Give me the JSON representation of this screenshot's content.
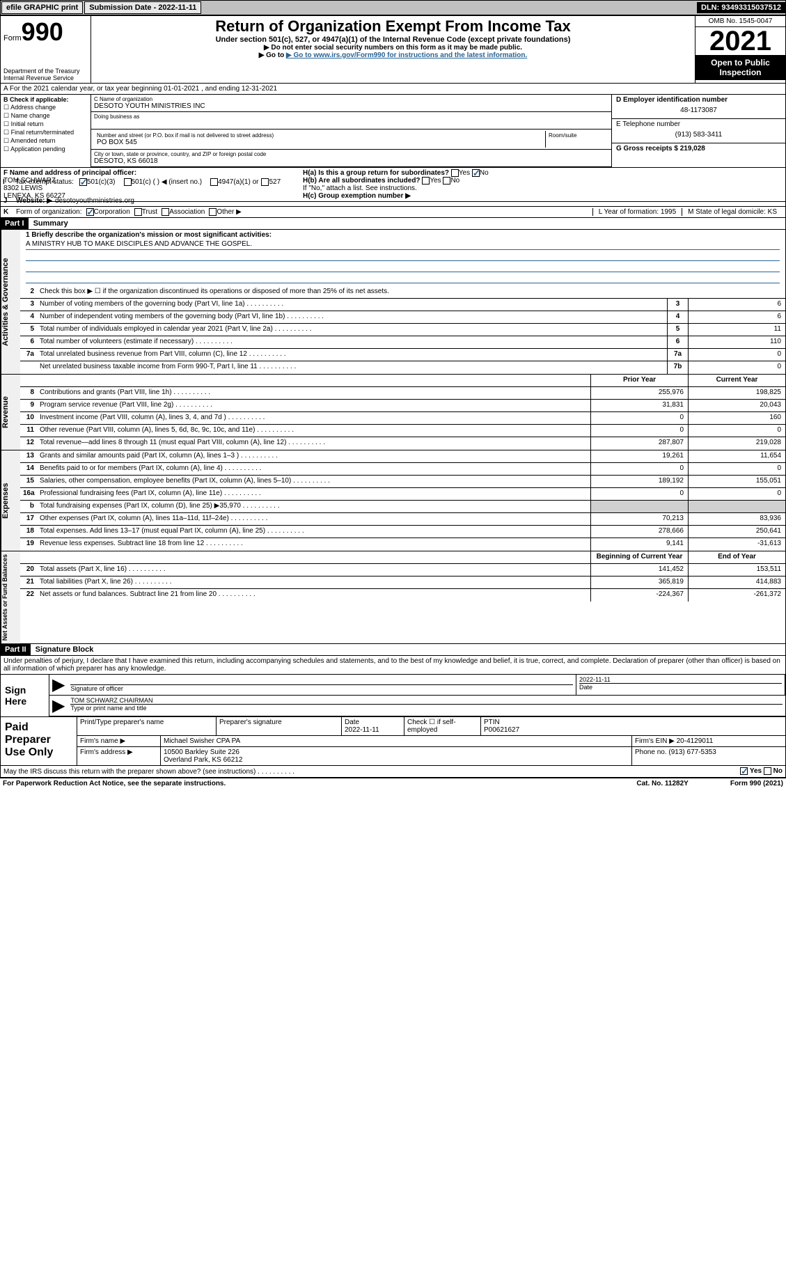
{
  "top": {
    "efile": "efile GRAPHIC print",
    "sub_label": "Submission Date - 2022-11-11",
    "dln": "DLN: 93493315037512"
  },
  "hdr": {
    "form": "Form",
    "num": "990",
    "dept": "Department of the Treasury\nInternal Revenue Service",
    "title": "Return of Organization Exempt From Income Tax",
    "sub": "Under section 501(c), 527, or 4947(a)(1) of the Internal Revenue Code (except private foundations)",
    "ssn": "▶ Do not enter social security numbers on this form as it may be made public.",
    "goto": "▶ Go to www.irs.gov/Form990 for instructions and the latest information.",
    "omb": "OMB No. 1545-0047",
    "year": "2021",
    "open": "Open to Public Inspection"
  },
  "a": "A For the 2021 calendar year, or tax year beginning 01-01-2021   , and ending 12-31-2021",
  "b": {
    "hdr": "B Check if applicable:",
    "items": [
      "Address change",
      "Name change",
      "Initial return",
      "Final return/terminated",
      "Amended return",
      "Application pending"
    ]
  },
  "c": {
    "name_lbl": "C Name of organization",
    "name": "DESOTO YOUTH MINISTRIES INC",
    "dba_lbl": "Doing business as",
    "addr_lbl": "Number and street (or P.O. box if mail is not delivered to street address)",
    "room_lbl": "Room/suite",
    "addr": "PO BOX 545",
    "city_lbl": "City or town, state or province, country, and ZIP or foreign postal code",
    "city": "DESOTO, KS  66018"
  },
  "d": {
    "lbl": "D Employer identification number",
    "val": "48-1173087"
  },
  "e": {
    "lbl": "E Telephone number",
    "val": "(913) 583-3411"
  },
  "g": {
    "lbl": "G Gross receipts $ 219,028"
  },
  "f": {
    "lbl": "F  Name and address of principal officer:",
    "name": "TOM SCHWARZ",
    "addr1": "8302 LEWIS",
    "addr2": "LENEXA, KS  66227"
  },
  "h": {
    "a": "H(a)  Is this a group return for subordinates?",
    "b": "H(b)  Are all subordinates included?",
    "bnote": "If \"No,\" attach a list. See instructions.",
    "c": "H(c)  Group exemption number ▶",
    "yes": "Yes",
    "no": "No"
  },
  "i": {
    "lbl": "I   Tax-exempt status:",
    "opts": [
      "501(c)(3)",
      "501(c) (  ) ◀ (insert no.)",
      "4947(a)(1) or",
      "527"
    ]
  },
  "j": {
    "lbl": "J   Website: ▶",
    "val": "desotoyouthministries.org"
  },
  "k": {
    "lbl": "K Form of organization:",
    "opts": [
      "Corporation",
      "Trust",
      "Association",
      "Other ▶"
    ]
  },
  "l": "L Year of formation: 1995",
  "m": "M State of legal domicile: KS",
  "part1": {
    "hdr": "Part I",
    "title": "Summary"
  },
  "mission": {
    "lbl": "1   Briefly describe the organization's mission or most significant activities:",
    "txt": "A MINISTRY HUB TO MAKE DISCIPLES AND ADVANCE THE GOSPEL."
  },
  "gov": {
    "tab": "Activities & Governance",
    "l2": "Check this box ▶ ☐  if the organization discontinued its operations or disposed of more than 25% of its net assets.",
    "rows": [
      {
        "n": "3",
        "d": "Number of voting members of the governing body (Part VI, line 1a)",
        "b": "3",
        "v": "6"
      },
      {
        "n": "4",
        "d": "Number of independent voting members of the governing body (Part VI, line 1b)",
        "b": "4",
        "v": "6"
      },
      {
        "n": "5",
        "d": "Total number of individuals employed in calendar year 2021 (Part V, line 2a)",
        "b": "5",
        "v": "11"
      },
      {
        "n": "6",
        "d": "Total number of volunteers (estimate if necessary)",
        "b": "6",
        "v": "110"
      },
      {
        "n": "7a",
        "d": "Total unrelated business revenue from Part VIII, column (C), line 12",
        "b": "7a",
        "v": "0"
      },
      {
        "n": "",
        "d": "Net unrelated business taxable income from Form 990-T, Part I, line 11",
        "b": "7b",
        "v": "0"
      }
    ]
  },
  "rev": {
    "tab": "Revenue",
    "hdr_prior": "Prior Year",
    "hdr_curr": "Current Year",
    "rows": [
      {
        "n": "8",
        "d": "Contributions and grants (Part VIII, line 1h)",
        "p": "255,976",
        "c": "198,825"
      },
      {
        "n": "9",
        "d": "Program service revenue (Part VIII, line 2g)",
        "p": "31,831",
        "c": "20,043"
      },
      {
        "n": "10",
        "d": "Investment income (Part VIII, column (A), lines 3, 4, and 7d )",
        "p": "0",
        "c": "160"
      },
      {
        "n": "11",
        "d": "Other revenue (Part VIII, column (A), lines 5, 6d, 8c, 9c, 10c, and 11e)",
        "p": "0",
        "c": "0"
      },
      {
        "n": "12",
        "d": "Total revenue—add lines 8 through 11 (must equal Part VIII, column (A), line 12)",
        "p": "287,807",
        "c": "219,028"
      }
    ]
  },
  "exp": {
    "tab": "Expenses",
    "rows": [
      {
        "n": "13",
        "d": "Grants and similar amounts paid (Part IX, column (A), lines 1–3 )",
        "p": "19,261",
        "c": "11,654"
      },
      {
        "n": "14",
        "d": "Benefits paid to or for members (Part IX, column (A), line 4)",
        "p": "0",
        "c": "0"
      },
      {
        "n": "15",
        "d": "Salaries, other compensation, employee benefits (Part IX, column (A), lines 5–10)",
        "p": "189,192",
        "c": "155,051"
      },
      {
        "n": "16a",
        "d": "Professional fundraising fees (Part IX, column (A), line 11e)",
        "p": "0",
        "c": "0"
      },
      {
        "n": "b",
        "d": "Total fundraising expenses (Part IX, column (D), line 25) ▶35,970",
        "p": "shade",
        "c": "shade"
      },
      {
        "n": "17",
        "d": "Other expenses (Part IX, column (A), lines 11a–11d, 11f–24e)",
        "p": "70,213",
        "c": "83,936"
      },
      {
        "n": "18",
        "d": "Total expenses. Add lines 13–17 (must equal Part IX, column (A), line 25)",
        "p": "278,666",
        "c": "250,641"
      },
      {
        "n": "19",
        "d": "Revenue less expenses. Subtract line 18 from line 12",
        "p": "9,141",
        "c": "-31,613"
      }
    ]
  },
  "net": {
    "tab": "Net Assets or Fund Balances",
    "hdr_beg": "Beginning of Current Year",
    "hdr_end": "End of Year",
    "rows": [
      {
        "n": "20",
        "d": "Total assets (Part X, line 16)",
        "p": "141,452",
        "c": "153,511"
      },
      {
        "n": "21",
        "d": "Total liabilities (Part X, line 26)",
        "p": "365,819",
        "c": "414,883"
      },
      {
        "n": "22",
        "d": "Net assets or fund balances. Subtract line 21 from line 20",
        "p": "-224,367",
        "c": "-261,372"
      }
    ]
  },
  "part2": {
    "hdr": "Part II",
    "title": "Signature Block"
  },
  "sig": {
    "decl": "Under penalties of perjury, I declare that I have examined this return, including accompanying schedules and statements, and to the best of my knowledge and belief, it is true, correct, and complete. Declaration of preparer (other than officer) is based on all information of which preparer has any knowledge.",
    "sign_here": "Sign Here",
    "sig_lbl": "Signature of officer",
    "date": "2022-11-11",
    "date_lbl": "Date",
    "name": "TOM SCHWARZ CHAIRMAN",
    "name_lbl": "Type or print name and title"
  },
  "paid": {
    "title": "Paid Preparer Use Only",
    "h1": "Print/Type preparer's name",
    "h2": "Preparer's signature",
    "h3": "Date",
    "h3v": "2022-11-11",
    "h4": "Check ☐ if self-employed",
    "h5": "PTIN",
    "h5v": "P00621627",
    "firm_lbl": "Firm's name    ▶",
    "firm": "Michael Swisher CPA PA",
    "ein_lbl": "Firm's EIN ▶",
    "ein": "20-4129011",
    "addr_lbl": "Firm's address ▶",
    "addr1": "10500 Barkley Suite 226",
    "addr2": "Overland Park, KS  66212",
    "phone_lbl": "Phone no.",
    "phone": "(913) 677-5353"
  },
  "may": "May the IRS discuss this return with the preparer shown above? (see instructions)",
  "foot": {
    "l": "For Paperwork Reduction Act Notice, see the separate instructions.",
    "m": "Cat. No. 11282Y",
    "r": "Form 990 (2021)"
  }
}
